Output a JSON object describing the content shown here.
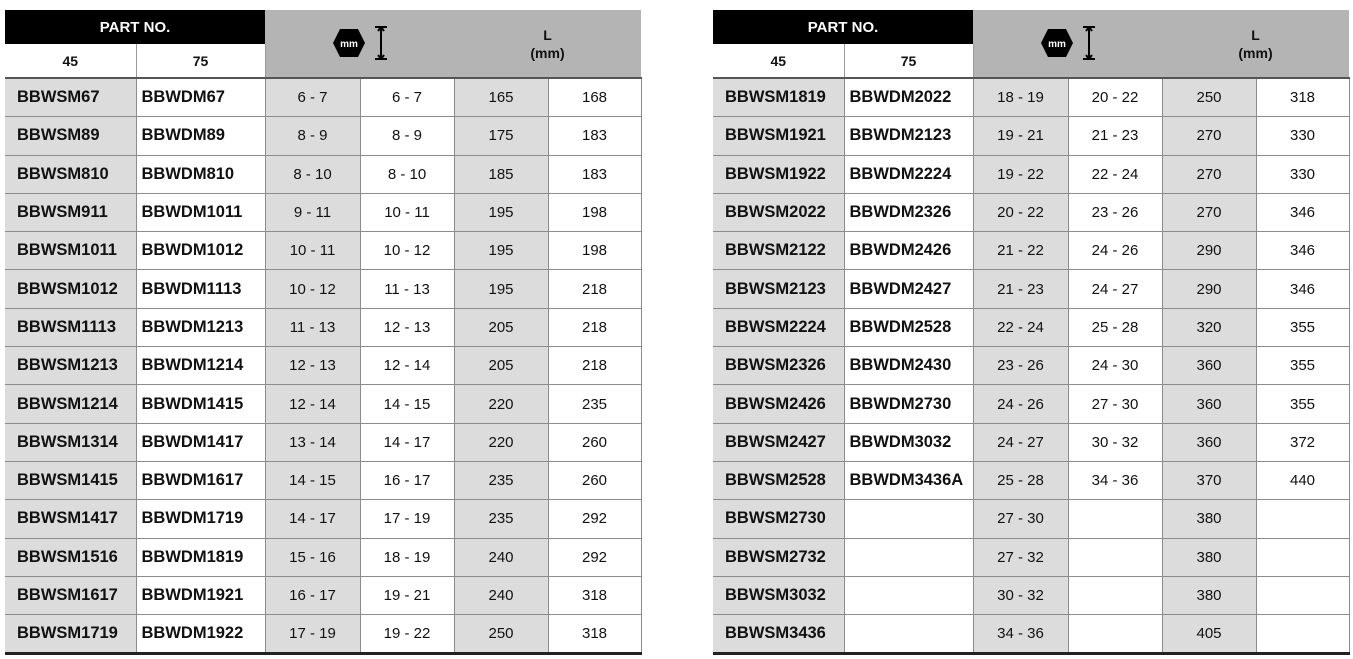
{
  "header": {
    "part_no": "PART NO.",
    "col_45": "45",
    "col_75": "75",
    "hex_label": "mm",
    "length_label": "L",
    "length_unit": "(mm)"
  },
  "colors": {
    "header_black": "#000000",
    "header_gray": "#b4b4b4",
    "cell_gray": "#dcdcdc"
  },
  "left_table": [
    [
      "BBWSM67",
      "BBWDM67",
      "6 - 7",
      "6 - 7",
      "165",
      "168"
    ],
    [
      "BBWSM89",
      "BBWDM89",
      "8 - 9",
      "8 - 9",
      "175",
      "183"
    ],
    [
      "BBWSM810",
      "BBWDM810",
      "8 - 10",
      "8 - 10",
      "185",
      "183"
    ],
    [
      "BBWSM911",
      "BBWDM1011",
      "9 - 11",
      "10 - 11",
      "195",
      "198"
    ],
    [
      "BBWSM1011",
      "BBWDM1012",
      "10 - 11",
      "10 - 12",
      "195",
      "198"
    ],
    [
      "BBWSM1012",
      "BBWDM1113",
      "10 - 12",
      "11 - 13",
      "195",
      "218"
    ],
    [
      "BBWSM1113",
      "BBWDM1213",
      "11 - 13",
      "12 - 13",
      "205",
      "218"
    ],
    [
      "BBWSM1213",
      "BBWDM1214",
      "12 - 13",
      "12 - 14",
      "205",
      "218"
    ],
    [
      "BBWSM1214",
      "BBWDM1415",
      "12 - 14",
      "14 - 15",
      "220",
      "235"
    ],
    [
      "BBWSM1314",
      "BBWDM1417",
      "13 - 14",
      "14 - 17",
      "220",
      "260"
    ],
    [
      "BBWSM1415",
      "BBWDM1617",
      "14 - 15",
      "16 - 17",
      "235",
      "260"
    ],
    [
      "BBWSM1417",
      "BBWDM1719",
      "14 - 17",
      "17 - 19",
      "235",
      "292"
    ],
    [
      "BBWSM1516",
      "BBWDM1819",
      "15 - 16",
      "18 - 19",
      "240",
      "292"
    ],
    [
      "BBWSM1617",
      "BBWDM1921",
      "16 - 17",
      "19 - 21",
      "240",
      "318"
    ],
    [
      "BBWSM1719",
      "BBWDM1922",
      "17 - 19",
      "19 - 22",
      "250",
      "318"
    ]
  ],
  "right_table": [
    [
      "BBWSM1819",
      "BBWDM2022",
      "18 - 19",
      "20 - 22",
      "250",
      "318"
    ],
    [
      "BBWSM1921",
      "BBWDM2123",
      "19 - 21",
      "21 - 23",
      "270",
      "330"
    ],
    [
      "BBWSM1922",
      "BBWDM2224",
      "19 - 22",
      "22 - 24",
      "270",
      "330"
    ],
    [
      "BBWSM2022",
      "BBWDM2326",
      "20 - 22",
      "23 - 26",
      "270",
      "346"
    ],
    [
      "BBWSM2122",
      "BBWDM2426",
      "21 - 22",
      "24 - 26",
      "290",
      "346"
    ],
    [
      "BBWSM2123",
      "BBWDM2427",
      "21 - 23",
      "24 - 27",
      "290",
      "346"
    ],
    [
      "BBWSM2224",
      "BBWDM2528",
      "22 - 24",
      "25 - 28",
      "320",
      "355"
    ],
    [
      "BBWSM2326",
      "BBWDM2430",
      "23 - 26",
      "24 - 30",
      "360",
      "355"
    ],
    [
      "BBWSM2426",
      "BBWDM2730",
      "24 - 26",
      "27 - 30",
      "360",
      "355"
    ],
    [
      "BBWSM2427",
      "BBWDM3032",
      "24 - 27",
      "30 - 32",
      "360",
      "372"
    ],
    [
      "BBWSM2528",
      "BBWDM3436A",
      "25 - 28",
      "34 - 36",
      "370",
      "440"
    ],
    [
      "BBWSM2730",
      "",
      "27 - 30",
      "",
      "380",
      ""
    ],
    [
      "BBWSM2732",
      "",
      "27 - 32",
      "",
      "380",
      ""
    ],
    [
      "BBWSM3032",
      "",
      "30 - 32",
      "",
      "380",
      ""
    ],
    [
      "BBWSM3436",
      "",
      "34 - 36",
      "",
      "405",
      ""
    ]
  ]
}
